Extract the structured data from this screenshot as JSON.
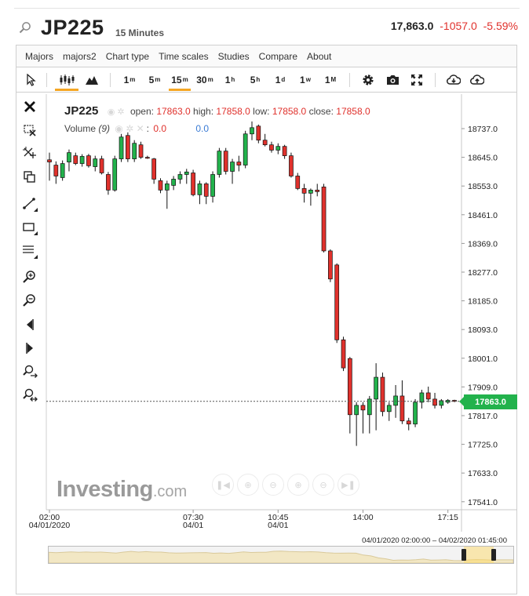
{
  "header": {
    "symbol": "JP225",
    "interval": "15 Minutes",
    "last": "17,863.0",
    "change": "-1057.0",
    "change_pct": "-5.59%"
  },
  "menu": [
    "Majors",
    "majors2",
    "Chart type",
    "Time scales",
    "Studies",
    "Compare",
    "About"
  ],
  "toolbar": {
    "timeframes": [
      {
        "n": "1",
        "u": "m",
        "selected": false
      },
      {
        "n": "5",
        "u": "m",
        "selected": false
      },
      {
        "n": "15",
        "u": "m",
        "selected": true
      },
      {
        "n": "30",
        "u": "m",
        "selected": false
      },
      {
        "n": "1",
        "u": "h",
        "selected": false
      },
      {
        "n": "5",
        "u": "h",
        "selected": false
      },
      {
        "n": "1",
        "u": "d",
        "selected": false
      },
      {
        "n": "1",
        "u": "w",
        "selected": false
      },
      {
        "n": "1",
        "u": "M",
        "selected": false
      }
    ],
    "icons": [
      "cursor-icon",
      "candlestick-icon",
      "mountain-icon",
      "gear-icon",
      "camera-icon",
      "fullscreen-icon",
      "download-icon",
      "upload-icon"
    ]
  },
  "legend": {
    "symbol": "JP225",
    "open_label": "open:",
    "open": "17863.0",
    "high_label": "high:",
    "high": "17858.0",
    "low_label": "low:",
    "low": "17858.0",
    "close_label": "close:",
    "close": "17858.0",
    "volume_label": "Volume",
    "volume_period": "(9)",
    "volume_value": "0.0",
    "volume_ma": "0.0"
  },
  "price_tag": "17863.0",
  "watermark": {
    "brand": "Investing",
    "suffix": ".com"
  },
  "range_label": "04/01/2020 02:00:00 – 04/02/2020 01:45:00",
  "chart_data": {
    "type": "candlestick",
    "y_axis": {
      "ticks": [
        18737,
        18645,
        18553,
        18461,
        18369,
        18277,
        18185,
        18093,
        18001,
        17909,
        17817,
        17725,
        17633,
        17541
      ],
      "side": "right"
    },
    "x_axis": {
      "ticks": [
        {
          "time": "02:00",
          "date": "04/01/2020"
        },
        {
          "time": "07:30",
          "date": "04/01"
        },
        {
          "time": "10:45",
          "date": "04/01"
        },
        {
          "time": "14:00",
          "date": ""
        },
        {
          "time": "17:15",
          "date": ""
        }
      ]
    },
    "current_price": 17863,
    "candles": [
      {
        "o": 18637,
        "h": 18660,
        "l": 18570,
        "c": 18630
      },
      {
        "o": 18620,
        "h": 18632,
        "l": 18560,
        "c": 18585
      },
      {
        "o": 18580,
        "h": 18635,
        "l": 18570,
        "c": 18625
      },
      {
        "o": 18630,
        "h": 18670,
        "l": 18600,
        "c": 18660
      },
      {
        "o": 18650,
        "h": 18660,
        "l": 18620,
        "c": 18625
      },
      {
        "o": 18625,
        "h": 18655,
        "l": 18615,
        "c": 18648
      },
      {
        "o": 18650,
        "h": 18656,
        "l": 18612,
        "c": 18618
      },
      {
        "o": 18615,
        "h": 18650,
        "l": 18600,
        "c": 18640
      },
      {
        "o": 18640,
        "h": 18650,
        "l": 18590,
        "c": 18595
      },
      {
        "o": 18590,
        "h": 18598,
        "l": 18525,
        "c": 18540
      },
      {
        "o": 18540,
        "h": 18650,
        "l": 18535,
        "c": 18640
      },
      {
        "o": 18640,
        "h": 18720,
        "l": 18630,
        "c": 18710
      },
      {
        "o": 18715,
        "h": 18725,
        "l": 18630,
        "c": 18640
      },
      {
        "o": 18640,
        "h": 18700,
        "l": 18630,
        "c": 18690
      },
      {
        "o": 18685,
        "h": 18695,
        "l": 18640,
        "c": 18645
      },
      {
        "o": 18645,
        "h": 18650,
        "l": 18640,
        "c": 18643
      },
      {
        "o": 18640,
        "h": 18643,
        "l": 18560,
        "c": 18575
      },
      {
        "o": 18570,
        "h": 18578,
        "l": 18530,
        "c": 18540
      },
      {
        "o": 18540,
        "h": 18570,
        "l": 18480,
        "c": 18560
      },
      {
        "o": 18555,
        "h": 18585,
        "l": 18540,
        "c": 18575
      },
      {
        "o": 18575,
        "h": 18600,
        "l": 18560,
        "c": 18590
      },
      {
        "o": 18590,
        "h": 18608,
        "l": 18560,
        "c": 18598
      },
      {
        "o": 18595,
        "h": 18605,
        "l": 18520,
        "c": 18525
      },
      {
        "o": 18525,
        "h": 18570,
        "l": 18495,
        "c": 18560
      },
      {
        "o": 18560,
        "h": 18565,
        "l": 18495,
        "c": 18520
      },
      {
        "o": 18520,
        "h": 18600,
        "l": 18500,
        "c": 18590
      },
      {
        "o": 18590,
        "h": 18675,
        "l": 18580,
        "c": 18665
      },
      {
        "o": 18665,
        "h": 18675,
        "l": 18590,
        "c": 18600
      },
      {
        "o": 18600,
        "h": 18640,
        "l": 18560,
        "c": 18630
      },
      {
        "o": 18630,
        "h": 18650,
        "l": 18600,
        "c": 18620
      },
      {
        "o": 18620,
        "h": 18730,
        "l": 18610,
        "c": 18720
      },
      {
        "o": 18720,
        "h": 18760,
        "l": 18700,
        "c": 18740
      },
      {
        "o": 18745,
        "h": 18750,
        "l": 18690,
        "c": 18700
      },
      {
        "o": 18700,
        "h": 18720,
        "l": 18680,
        "c": 18685
      },
      {
        "o": 18685,
        "h": 18695,
        "l": 18660,
        "c": 18668
      },
      {
        "o": 18668,
        "h": 18690,
        "l": 18655,
        "c": 18680
      },
      {
        "o": 18680,
        "h": 18685,
        "l": 18640,
        "c": 18650
      },
      {
        "o": 18650,
        "h": 18660,
        "l": 18580,
        "c": 18585
      },
      {
        "o": 18585,
        "h": 18595,
        "l": 18540,
        "c": 18545
      },
      {
        "o": 18545,
        "h": 18560,
        "l": 18500,
        "c": 18530
      },
      {
        "o": 18530,
        "h": 18545,
        "l": 18490,
        "c": 18540
      },
      {
        "o": 18540,
        "h": 18560,
        "l": 18520,
        "c": 18535
      },
      {
        "o": 18550,
        "h": 18560,
        "l": 18340,
        "c": 18345
      },
      {
        "o": 18345,
        "h": 18350,
        "l": 18245,
        "c": 18255
      },
      {
        "o": 18300,
        "h": 18305,
        "l": 18050,
        "c": 18060
      },
      {
        "o": 18060,
        "h": 18070,
        "l": 17960,
        "c": 17970
      },
      {
        "o": 18000,
        "h": 18005,
        "l": 17760,
        "c": 17820
      },
      {
        "o": 17820,
        "h": 17860,
        "l": 17720,
        "c": 17850
      },
      {
        "o": 17850,
        "h": 17860,
        "l": 17760,
        "c": 17835
      },
      {
        "o": 17820,
        "h": 17880,
        "l": 17760,
        "c": 17870
      },
      {
        "o": 17870,
        "h": 17985,
        "l": 17770,
        "c": 17940
      },
      {
        "o": 17940,
        "h": 17955,
        "l": 17815,
        "c": 17830
      },
      {
        "o": 17830,
        "h": 17860,
        "l": 17800,
        "c": 17850
      },
      {
        "o": 17850,
        "h": 17915,
        "l": 17810,
        "c": 17880
      },
      {
        "o": 17880,
        "h": 17930,
        "l": 17790,
        "c": 17800
      },
      {
        "o": 17800,
        "h": 17810,
        "l": 17770,
        "c": 17790
      },
      {
        "o": 17790,
        "h": 17870,
        "l": 17780,
        "c": 17860
      },
      {
        "o": 17860,
        "h": 17900,
        "l": 17840,
        "c": 17890
      },
      {
        "o": 17890,
        "h": 17910,
        "l": 17860,
        "c": 17870
      },
      {
        "o": 17870,
        "h": 17890,
        "l": 17840,
        "c": 17850
      },
      {
        "o": 17850,
        "h": 17870,
        "l": 17840,
        "c": 17865
      },
      {
        "o": 17860,
        "h": 17870,
        "l": 17855,
        "c": 17866
      },
      {
        "o": 17866,
        "h": 17868,
        "l": 17860,
        "c": 17863
      }
    ]
  },
  "colors": {
    "up": "#22b24c",
    "down": "#e0312c",
    "accent": "#f5a623",
    "outline": "#111111"
  }
}
